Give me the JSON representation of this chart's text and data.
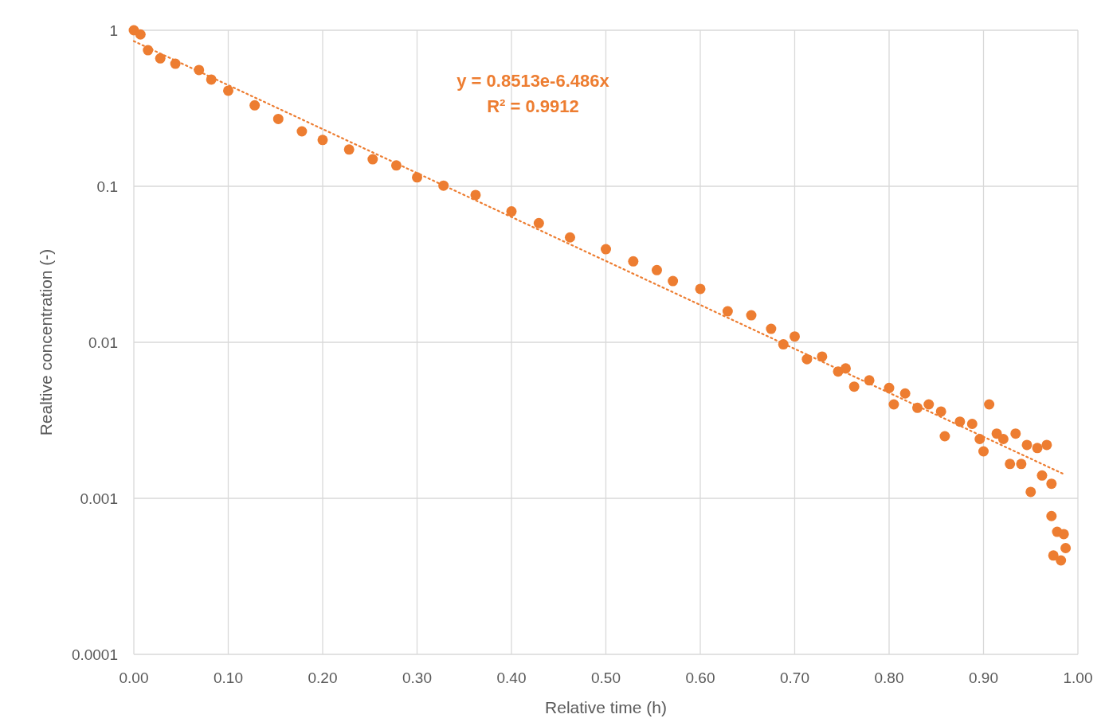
{
  "chart_data": {
    "type": "scatter",
    "xlabel": "Relative time (h)",
    "ylabel": "Realtive concentration (-)",
    "annotations": [
      "y = 0.8513e-6.486x",
      "R² = 0.9912"
    ],
    "xlim": [
      0,
      1
    ],
    "ylim": [
      0.0001,
      1
    ],
    "log": "y",
    "grid": true,
    "xticks": [
      {
        "value": 0,
        "label": "0.00"
      },
      {
        "value": 0.1,
        "label": "0.10"
      },
      {
        "value": 0.2,
        "label": "0.20"
      },
      {
        "value": 0.3,
        "label": "0.30"
      },
      {
        "value": 0.4,
        "label": "0.40"
      },
      {
        "value": 0.5,
        "label": "0.50"
      },
      {
        "value": 0.6,
        "label": "0.60"
      },
      {
        "value": 0.7,
        "label": "0.70"
      },
      {
        "value": 0.8,
        "label": "0.80"
      },
      {
        "value": 0.9,
        "label": "0.90"
      },
      {
        "value": 1,
        "label": "1.00"
      }
    ],
    "yticks": [
      0.0001,
      0.001,
      0.01,
      0.1,
      1
    ],
    "series": [
      {
        "color": "#ed7d31",
        "marker": "circle",
        "x": [
          0,
          0.007,
          0.015,
          0.028,
          0.044,
          0.069,
          0.082,
          0.1,
          0.128,
          0.153,
          0.178,
          0.2,
          0.228,
          0.253,
          0.278,
          0.3,
          0.328,
          0.362,
          0.4,
          0.429,
          0.462,
          0.5,
          0.529,
          0.554,
          0.571,
          0.6,
          0.629,
          0.654,
          0.675,
          0.688,
          0.7,
          0.713,
          0.729,
          0.746,
          0.754,
          0.763,
          0.779,
          0.8,
          0.805,
          0.817,
          0.83,
          0.842,
          0.855,
          0.859,
          0.875,
          0.888,
          0.896,
          0.9,
          0.906,
          0.914,
          0.921,
          0.928,
          0.934,
          0.94,
          0.946,
          0.95,
          0.957,
          0.962,
          0.967,
          0.972,
          0.972,
          0.974,
          0.978,
          0.982,
          0.985,
          0.987
        ],
        "values": [
          1,
          0.94,
          0.745,
          0.66,
          0.61,
          0.556,
          0.483,
          0.41,
          0.33,
          0.27,
          0.225,
          0.198,
          0.172,
          0.149,
          0.136,
          0.114,
          0.101,
          0.088,
          0.069,
          0.058,
          0.047,
          0.0395,
          0.033,
          0.029,
          0.0247,
          0.022,
          0.0158,
          0.0149,
          0.0122,
          0.0097,
          0.0109,
          0.0078,
          0.0081,
          0.0065,
          0.0068,
          0.0052,
          0.0057,
          0.0051,
          0.004,
          0.0047,
          0.0038,
          0.004,
          0.0036,
          0.0025,
          0.0031,
          0.003,
          0.0024,
          0.002,
          0.004,
          0.0026,
          0.0024,
          0.00166,
          0.0026,
          0.00166,
          0.0022,
          0.0011,
          0.0021,
          0.0014,
          0.0022,
          0.00124,
          0.00077,
          0.00043,
          0.00061,
          0.0004,
          0.00059,
          0.00048
        ]
      },
      {
        "type": "line",
        "color": "#ed7d31",
        "line_style": "dotted",
        "marker": "none",
        "x": [
          0,
          0.5,
          0.985
        ],
        "values": [
          0.8513,
          0.0332,
          0.00143
        ]
      }
    ]
  }
}
